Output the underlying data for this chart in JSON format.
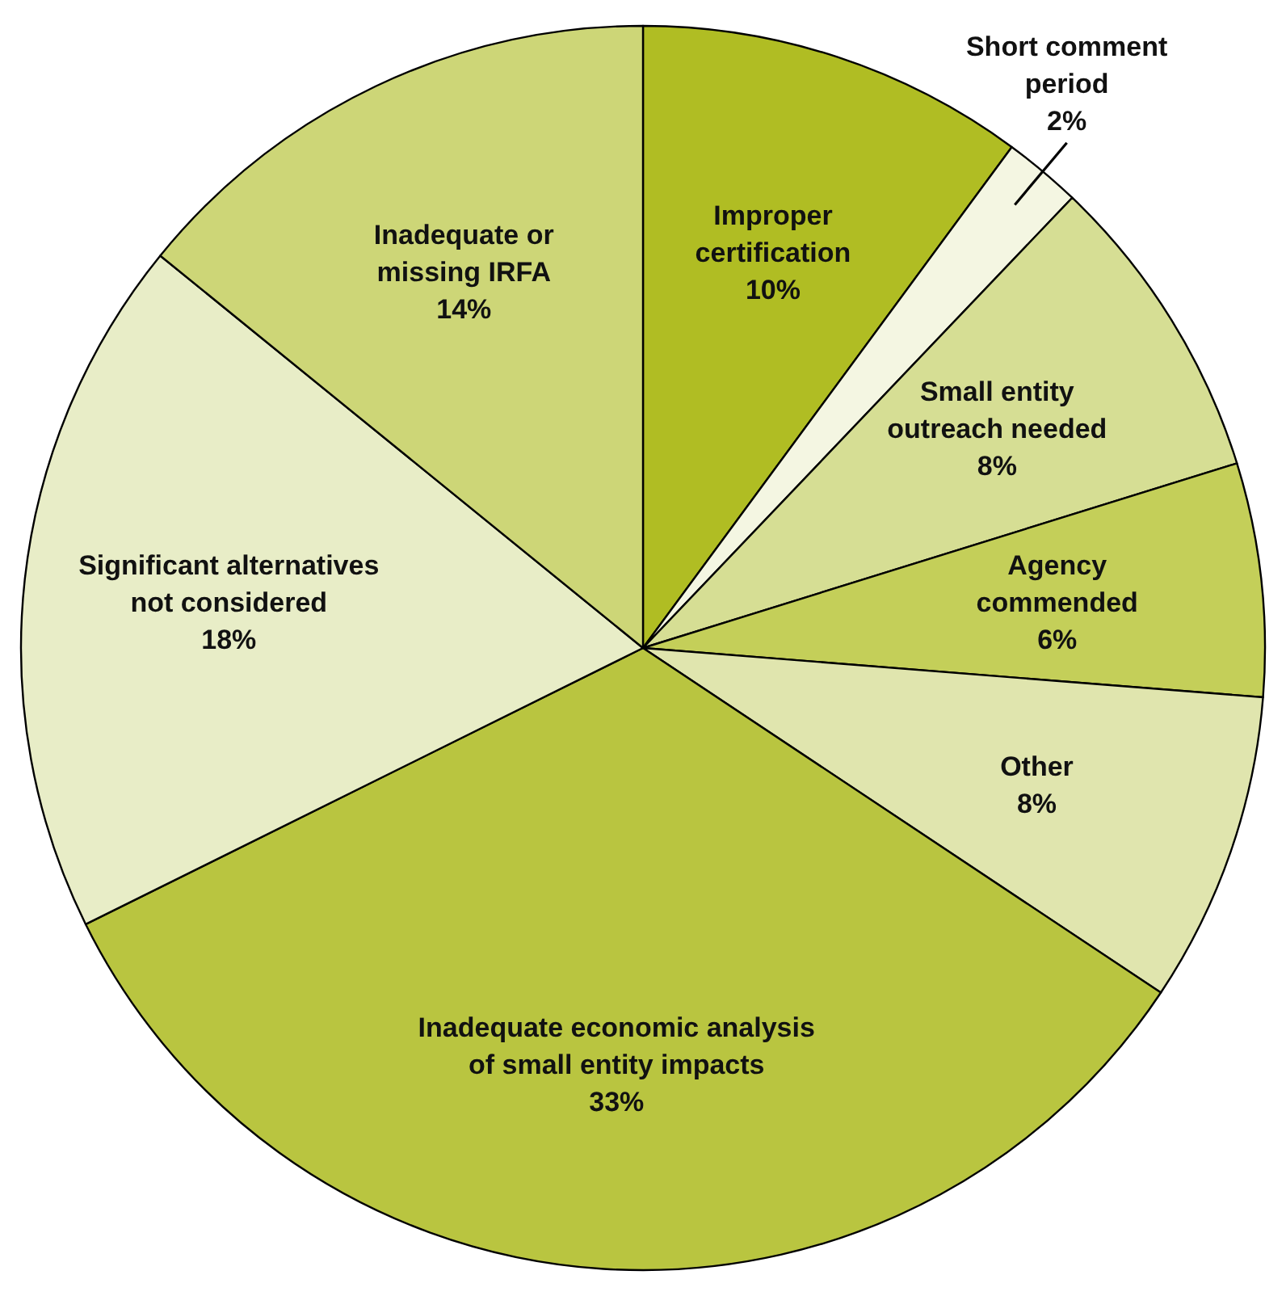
{
  "chart_data": {
    "type": "pie",
    "categories": [
      "Improper\ncertification",
      "Short comment\nperiod",
      "Small entity\noutreach needed",
      "Agency\ncommended",
      "Other",
      "Inadequate economic analysis\nof small entity impacts",
      "Significant alternatives\nnot considered",
      "Inadequate or\nmissing IRFA"
    ],
    "values": [
      10,
      2,
      8,
      6,
      8,
      33,
      18,
      14
    ],
    "value_labels": [
      "10%",
      "2%",
      "8%",
      "6%",
      "8%",
      "33%",
      "18%",
      "14%"
    ],
    "colors": [
      "#b0bd23",
      "#f4f6e2",
      "#d6de94",
      "#c4cf59",
      "#e0e5ae",
      "#b9c540",
      "#e8edc7",
      "#cdd677"
    ]
  }
}
